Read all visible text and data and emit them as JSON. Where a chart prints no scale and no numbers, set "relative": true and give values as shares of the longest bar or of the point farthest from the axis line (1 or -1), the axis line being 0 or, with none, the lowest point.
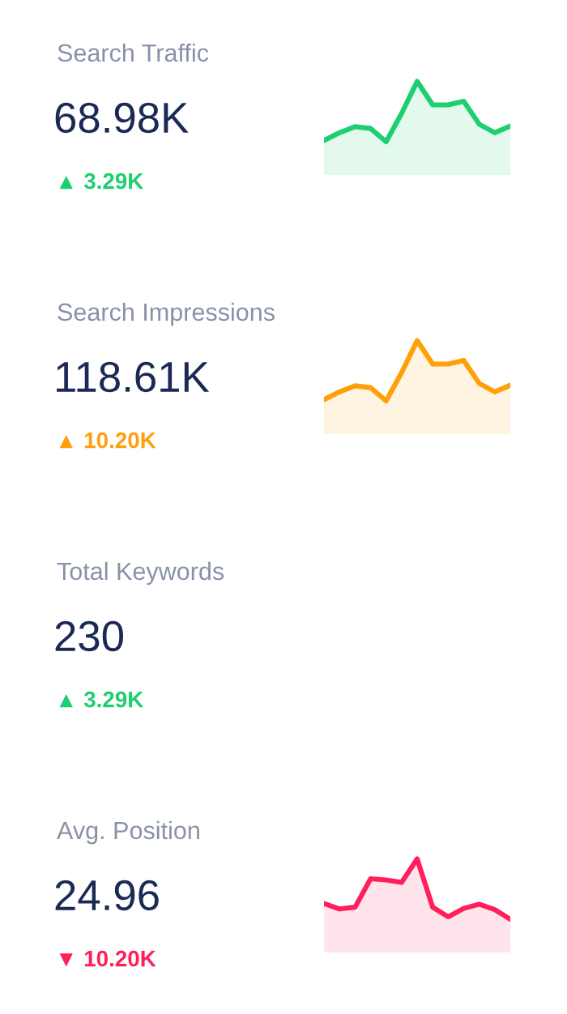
{
  "chart_data": [
    {
      "type": "area",
      "relative": true,
      "title": "Search Traffic",
      "annotations": [
        "68.98K",
        "▲ 3.29K"
      ],
      "categories": [
        null,
        null,
        null,
        null,
        null,
        null,
        null,
        null,
        null,
        null,
        null,
        null,
        null
      ],
      "series": [
        {
          "color": "#1ccf70",
          "values": [
            0.02,
            0.15,
            0.25,
            0.22,
            0,
            0.47,
            1,
            0.61,
            0.61,
            0.67,
            0.29,
            0.15,
            0.26
          ]
        }
      ]
    },
    {
      "type": "area",
      "relative": true,
      "title": "Search Impressions",
      "annotations": [
        "118.61K",
        "▲ 10.20K"
      ],
      "categories": [
        null,
        null,
        null,
        null,
        null,
        null,
        null,
        null,
        null,
        null,
        null,
        null,
        null
      ],
      "series": [
        {
          "color": "#ff9f0a",
          "values": [
            0.02,
            0.15,
            0.25,
            0.22,
            0,
            0.47,
            1,
            0.61,
            0.61,
            0.67,
            0.29,
            0.15,
            0.26
          ]
        }
      ]
    },
    {
      "type": "other",
      "title": "Total Keywords",
      "annotations": [
        "230",
        "▲ 3.29K"
      ],
      "colors": [
        "#1ccf70"
      ]
    },
    {
      "type": "area",
      "relative": true,
      "title": "Avg. Position",
      "annotations": [
        "24.96",
        "▼ 10.20K"
      ],
      "categories": [
        null,
        null,
        null,
        null,
        null,
        null,
        null,
        null,
        null,
        null,
        null,
        null,
        null
      ],
      "series": [
        {
          "color": "#ff1f5a",
          "values": [
            0.26,
            0.17,
            0.2,
            0.67,
            0.65,
            0.61,
            1,
            0.2,
            0.04,
            0.18,
            0.25,
            0.16,
            0
          ]
        }
      ]
    }
  ]
}
